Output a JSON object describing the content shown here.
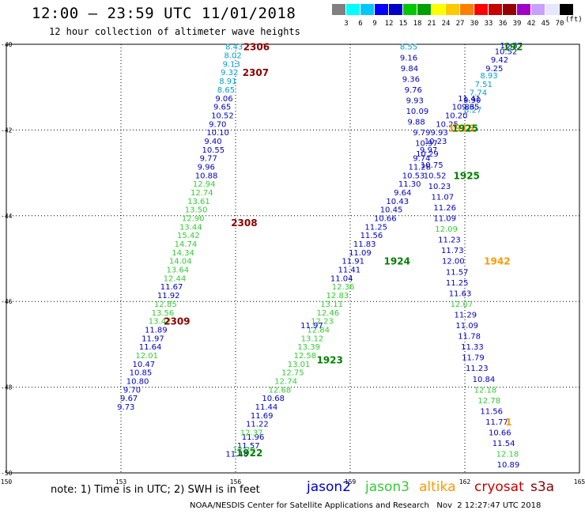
{
  "title": "12:00 — 23:59 UTC 11/01/2018",
  "subtitle": "12 hour collection of altimeter wave heights",
  "colorbar": {
    "colors": [
      "#808080",
      "#00ffff",
      "#00c8ff",
      "#0000ff",
      "#0000c8",
      "#00c800",
      "#00a000",
      "#ffff00",
      "#ffc800",
      "#ff8000",
      "#ff0000",
      "#c80000",
      "#960000",
      "#a000c8",
      "#c8a0ff",
      "#e6e6ff",
      "#000000"
    ],
    "labels": [
      "3",
      "6",
      "9",
      "12",
      "15",
      "18",
      "21",
      "24",
      "27",
      "30",
      "33",
      "36",
      "39",
      "42",
      "45",
      "70"
    ],
    "unit": "(ft)"
  },
  "map": {
    "x_ticks": [
      "150",
      "153",
      "156",
      "159",
      "162",
      "165"
    ],
    "y_ticks": [
      "-40",
      "-42",
      "-44",
      "-46",
      "-48",
      "-50"
    ]
  },
  "colors": {
    "jason2": "#0000c8",
    "jason3": "#32cd32",
    "altika": "#ff9900",
    "cryosat": "#c80000",
    "s3a": "#8b0000",
    "green_label": "#008000",
    "cyan": "#00a0d0"
  },
  "tracks": [
    {
      "color": "cyan",
      "pts": [
        [
          155.73,
          -40.05,
          "8.43"
        ],
        [
          155.7,
          -40.25,
          "8.02"
        ],
        [
          155.66,
          -40.45,
          "9.13"
        ],
        [
          155.61,
          -40.65,
          "9.32"
        ],
        [
          155.57,
          -40.85,
          "8.91"
        ],
        [
          155.52,
          -41.05,
          "8.65"
        ]
      ]
    },
    {
      "color": "jason2",
      "pts": [
        [
          155.47,
          -41.25,
          "9.06"
        ],
        [
          155.42,
          -41.45,
          "9.65"
        ],
        [
          155.36,
          -41.65,
          "10.52"
        ],
        [
          155.3,
          -41.85,
          "9.70"
        ],
        [
          155.24,
          -42.05,
          "10.10"
        ],
        [
          155.18,
          -42.25,
          "9.40"
        ],
        [
          155.12,
          -42.45,
          "10.55"
        ],
        [
          155.06,
          -42.65,
          "9.77"
        ],
        [
          155.0,
          -42.85,
          "9.96"
        ],
        [
          154.94,
          -43.05,
          "10.88"
        ]
      ]
    },
    {
      "color": "jason3",
      "pts": [
        [
          154.88,
          -43.25,
          "12.94"
        ],
        [
          154.82,
          -43.45,
          "12.74"
        ],
        [
          154.74,
          -43.65,
          "13.61"
        ],
        [
          154.67,
          -43.85,
          "13.50"
        ],
        [
          154.59,
          -44.05,
          "12.90"
        ],
        [
          154.53,
          -44.25,
          "13.44"
        ],
        [
          154.47,
          -44.45,
          "15.42"
        ],
        [
          154.4,
          -44.65,
          "14.74"
        ],
        [
          154.33,
          -44.85,
          "14.34"
        ],
        [
          154.26,
          -45.05,
          "14.04"
        ],
        [
          154.19,
          -45.25,
          "13.64"
        ],
        [
          154.11,
          -45.45,
          "12.44"
        ]
      ]
    },
    {
      "color": "jason2",
      "pts": [
        [
          154.03,
          -45.65,
          "11.67"
        ],
        [
          153.95,
          -45.85,
          "11.92"
        ]
      ]
    },
    {
      "color": "jason3",
      "pts": [
        [
          153.87,
          -46.05,
          "12.85"
        ],
        [
          153.8,
          -46.25,
          "13.56"
        ],
        [
          153.72,
          -46.45,
          "13.42"
        ]
      ]
    },
    {
      "color": "jason2",
      "pts": [
        [
          153.62,
          -46.65,
          "11.89"
        ],
        [
          153.54,
          -46.85,
          "11.97"
        ],
        [
          153.47,
          -47.05,
          "11.64"
        ]
      ]
    },
    {
      "color": "jason3",
      "pts": [
        [
          153.38,
          -47.25,
          "12.01"
        ]
      ]
    },
    {
      "color": "jason2",
      "pts": [
        [
          153.3,
          -47.45,
          "10.47"
        ],
        [
          153.22,
          -47.65,
          "10.85"
        ],
        [
          153.14,
          -47.85,
          "10.80"
        ],
        [
          153.06,
          -48.05,
          "9.70"
        ],
        [
          152.98,
          -48.25,
          "9.67"
        ],
        [
          152.9,
          -48.45,
          "9.73"
        ]
      ]
    },
    {
      "color": "jason2",
      "pts": [
        [
          155.74,
          -49.55,
          "11.48"
        ],
        [
          156.04,
          -49.35,
          "11.57"
        ],
        [
          156.16,
          -49.15,
          "11.96"
        ]
      ]
    },
    {
      "color": "jason3",
      "pts": [
        [
          155.92,
          -49.45,
          "12.29"
        ],
        [
          156.12,
          -49.05,
          "12.37"
        ]
      ]
    },
    {
      "color": "jason2",
      "pts": [
        [
          156.27,
          -48.85,
          "11.22"
        ],
        [
          156.39,
          -48.65,
          "11.69"
        ],
        [
          156.51,
          -48.45,
          "11.44"
        ],
        [
          156.69,
          -48.25,
          "10.68"
        ]
      ]
    },
    {
      "color": "jason3",
      "pts": [
        [
          156.86,
          -48.05,
          "12.68"
        ],
        [
          157.02,
          -47.85,
          "12.74"
        ],
        [
          157.2,
          -47.65,
          "12.75"
        ],
        [
          157.36,
          -47.45,
          "13.01"
        ],
        [
          157.52,
          -47.25,
          "12.58"
        ],
        [
          157.62,
          -47.05,
          "13.39"
        ],
        [
          157.71,
          -46.85,
          "13.12"
        ],
        [
          157.87,
          -46.65,
          "12.84"
        ],
        [
          157.97,
          -46.45,
          "12.23"
        ],
        [
          158.12,
          -46.25,
          "12.46"
        ],
        [
          158.22,
          -46.05,
          "13.11"
        ],
        [
          158.37,
          -45.85,
          "12.83"
        ],
        [
          158.52,
          -45.65,
          "12.36"
        ]
      ]
    },
    {
      "color": "jason2",
      "pts": [
        [
          157.7,
          -46.55,
          "11.97"
        ],
        [
          158.48,
          -45.45,
          "11.04"
        ],
        [
          158.68,
          -45.25,
          "11.41"
        ],
        [
          158.78,
          -45.05,
          "11.91"
        ],
        [
          158.96,
          -44.85,
          "11.09"
        ],
        [
          159.08,
          -44.65,
          "11.83"
        ],
        [
          159.26,
          -44.45,
          "11.56"
        ],
        [
          159.38,
          -44.25,
          "11.25"
        ],
        [
          159.62,
          -44.05,
          "10.66"
        ],
        [
          159.78,
          -43.85,
          "10.45"
        ],
        [
          159.94,
          -43.65,
          "10.43"
        ],
        [
          160.14,
          -43.45,
          "9.64"
        ],
        [
          160.26,
          -43.25,
          "11.30"
        ],
        [
          160.36,
          -43.05,
          "10.53"
        ],
        [
          160.52,
          -42.85,
          "11.28"
        ],
        [
          160.64,
          -42.65,
          "9.74"
        ],
        [
          160.82,
          -42.45,
          "9.97"
        ],
        [
          160.94,
          -42.25,
          "10.23"
        ],
        [
          161.1,
          -42.05,
          "9.93"
        ],
        [
          161.24,
          -41.85,
          "10.25"
        ],
        [
          161.48,
          -41.65,
          "10.20"
        ],
        [
          161.66,
          -41.45,
          "10.83"
        ],
        [
          161.82,
          -41.25,
          "11.41"
        ]
      ]
    },
    {
      "color": "jason2",
      "pts": [
        [
          162.92,
          -40.02,
          "10.57"
        ],
        [
          162.78,
          -40.16,
          "10.52"
        ],
        [
          162.68,
          -40.35,
          "9.42"
        ],
        [
          162.54,
          -40.55,
          "9.25"
        ]
      ]
    },
    {
      "color": "cyan",
      "pts": [
        [
          162.4,
          -40.72,
          "8.93"
        ],
        [
          162.26,
          -40.92,
          "7.51"
        ],
        [
          162.12,
          -41.12,
          "7.74"
        ],
        [
          161.98,
          -41.52,
          "8.27"
        ]
      ]
    },
    {
      "color": "jason2",
      "pts": [
        [
          161.96,
          -41.29,
          "9.90"
        ],
        [
          161.92,
          -41.45,
          "9.65"
        ]
      ]
    },
    {
      "color": "cyan",
      "pts": [
        [
          160.3,
          -40.05,
          "8.55"
        ]
      ]
    },
    {
      "color": "jason2",
      "pts": [
        [
          160.3,
          -40.3,
          "9.16"
        ],
        [
          160.32,
          -40.55,
          "9.84"
        ],
        [
          160.36,
          -40.8,
          "9.36"
        ],
        [
          160.42,
          -41.05,
          "9.76"
        ],
        [
          160.46,
          -41.3,
          "9.93"
        ],
        [
          160.46,
          -41.55,
          "10.09"
        ],
        [
          160.5,
          -41.8,
          "9.88"
        ],
        [
          160.64,
          -42.05,
          "9.79"
        ],
        [
          160.7,
          -42.3,
          "10.97"
        ],
        [
          160.72,
          -42.55,
          "10.29"
        ],
        [
          160.84,
          -42.8,
          "10.75"
        ],
        [
          160.92,
          -43.05,
          "10.52"
        ],
        [
          161.04,
          -43.3,
          "10.23"
        ],
        [
          161.12,
          -43.55,
          "11.07"
        ],
        [
          161.18,
          -43.8,
          "11.26"
        ],
        [
          161.18,
          -44.05,
          "11.09"
        ]
      ]
    },
    {
      "color": "jason3",
      "pts": [
        [
          161.22,
          -44.3,
          "12.09"
        ]
      ]
    },
    {
      "color": "jason2",
      "pts": [
        [
          161.3,
          -44.55,
          "11.23"
        ],
        [
          161.38,
          -44.8,
          "11.73"
        ],
        [
          161.4,
          -45.05,
          "12.00"
        ],
        [
          161.5,
          -45.3,
          "11.57"
        ],
        [
          161.5,
          -45.55,
          "11.25"
        ],
        [
          161.58,
          -45.8,
          "11.63"
        ]
      ]
    },
    {
      "color": "jason3",
      "pts": [
        [
          161.62,
          -46.05,
          "12.07"
        ]
      ]
    },
    {
      "color": "jason2",
      "pts": [
        [
          161.72,
          -46.3,
          "11.29"
        ],
        [
          161.76,
          -46.55,
          "11.09"
        ],
        [
          161.82,
          -46.8,
          "11.78"
        ],
        [
          161.9,
          -47.05,
          "11.33"
        ],
        [
          161.92,
          -47.3,
          "11.79"
        ],
        [
          162.02,
          -47.55,
          "11.23"
        ],
        [
          162.2,
          -47.8,
          "10.84"
        ]
      ]
    },
    {
      "color": "jason3",
      "pts": [
        [
          162.24,
          -48.05,
          "12.18"
        ],
        [
          162.34,
          -48.3,
          "12.78"
        ]
      ]
    },
    {
      "color": "jason2",
      "pts": [
        [
          162.4,
          -48.55,
          "11.56"
        ],
        [
          162.54,
          -48.8,
          "11.77"
        ],
        [
          162.62,
          -49.05,
          "10.66"
        ],
        [
          162.72,
          -49.3,
          "11.54"
        ]
      ]
    },
    {
      "color": "jason3",
      "pts": [
        [
          162.82,
          -49.55,
          "12.18"
        ]
      ]
    },
    {
      "color": "jason2",
      "pts": [
        [
          162.84,
          -49.8,
          "10.89"
        ]
      ]
    }
  ],
  "pass_labels": [
    [
      156.2,
      -40.05,
      "2306",
      "s3a"
    ],
    [
      156.18,
      -40.65,
      "2307",
      "s3a"
    ],
    [
      155.88,
      -44.15,
      "2308",
      "s3a"
    ],
    [
      154.12,
      -46.45,
      "2309",
      "s3a"
    ],
    [
      163.0,
      -40.05,
      "192",
      "green_label"
    ],
    [
      161.56,
      -41.95,
      "1916",
      "altika"
    ],
    [
      161.66,
      -41.95,
      "1925",
      "green_label"
    ],
    [
      161.7,
      -43.05,
      "1925",
      "green_label"
    ],
    [
      159.88,
      -45.05,
      "1924",
      "green_label"
    ],
    [
      158.12,
      -47.35,
      "1923",
      "green_label"
    ],
    [
      156.02,
      -49.52,
      "1922",
      "green_label"
    ],
    [
      162.5,
      -45.05,
      "1942",
      "altika"
    ],
    [
      163.06,
      -48.8,
      "1",
      "altika"
    ]
  ],
  "legend": {
    "jason2": "jason2",
    "jason3": "jason3",
    "altika": "altika",
    "cryosat": "cryosat",
    "s3a": "s3a"
  },
  "note": "note: 1) Time is in UTC; 2) SWH is in feet",
  "footer": "NOAA/NESDIS Center for Satellite Applications and Research   Nov  2 12:27:47 UTC 2018"
}
